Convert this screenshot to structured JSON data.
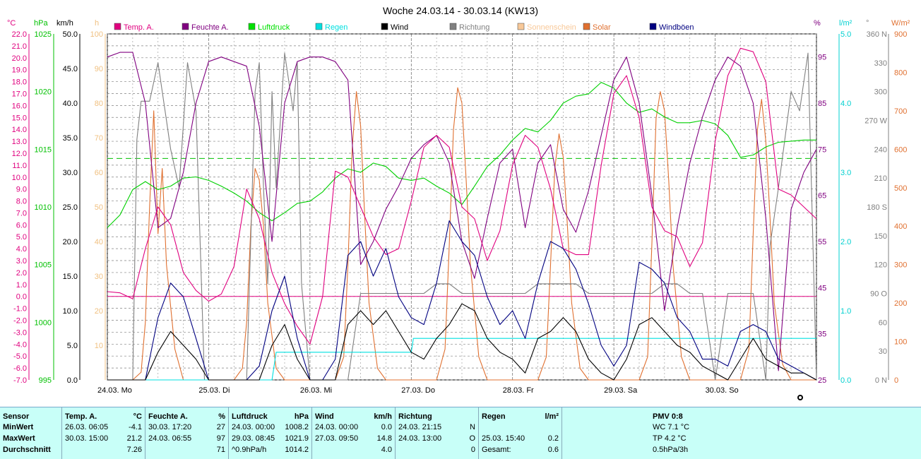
{
  "chart_data": {
    "type": "line",
    "title": "Woche 24.03.14 - 30.03.14 (KW13)",
    "x_days": [
      "24.03.  Mo",
      "25.03.  Di",
      "26.03.  Mi",
      "27.03.  Do",
      "28.03.  Fr",
      "29.03.  Sa",
      "30.03.  So"
    ],
    "x_range_hours": [
      0,
      168
    ],
    "axes": {
      "temp": {
        "unit": "°C",
        "min": -7,
        "max": 22,
        "step": 1,
        "color": "#e0007f"
      },
      "pressure": {
        "unit": "hPa",
        "min": 995,
        "max": 1025,
        "step": 5,
        "color": "#00c000"
      },
      "wind": {
        "unit": "km/h",
        "min": 0,
        "max": 50,
        "step": 5,
        "color": "#000000"
      },
      "sunshine": {
        "unit": "h",
        "min": 0,
        "max": 100,
        "step": 10,
        "color": "#f0c080"
      },
      "humidity": {
        "unit": "%",
        "ticks": [
          25,
          35,
          45,
          55,
          65,
          75,
          85,
          95
        ],
        "color": "#800080"
      },
      "rain": {
        "unit": "l/m²",
        "min": 0,
        "max": 5,
        "step": 1,
        "color": "#00d0d0"
      },
      "direction": {
        "unit": "°",
        "ticks": [
          "0 N",
          "30",
          "60",
          "90 O",
          "120",
          "150",
          "180 S",
          "210",
          "240",
          "270 W",
          "300",
          "330",
          "360 N"
        ],
        "color": "#808080"
      },
      "solar": {
        "unit": "W/m²",
        "min": 0,
        "max": 900,
        "step": 100,
        "color": "#e07030"
      }
    },
    "legend": [
      {
        "name": "Temp. A.",
        "color": "#e0007f"
      },
      {
        "name": "Feuchte A.",
        "color": "#800080"
      },
      {
        "name": "Luftdruck",
        "color": "#00e000"
      },
      {
        "name": "Regen",
        "color": "#00e0e0"
      },
      {
        "name": "Wind",
        "color": "#000000"
      },
      {
        "name": "Richtung",
        "color": "#808080"
      },
      {
        "name": "Sonnenschein",
        "color": "#f8c898"
      },
      {
        "name": "Solar",
        "color": "#e07030"
      },
      {
        "name": "Windböen",
        "color": "#000080"
      }
    ],
    "series": [
      {
        "name": "Temp. A.",
        "axis": "temp",
        "color": "#e0007f",
        "x": [
          0,
          3,
          6,
          9,
          12,
          15,
          18,
          21,
          24,
          27,
          30,
          33,
          36,
          39,
          42,
          45,
          48,
          51,
          54,
          57,
          60,
          63,
          66,
          69,
          72,
          75,
          78,
          81,
          84,
          87,
          90,
          93,
          96,
          99,
          102,
          105,
          108,
          111,
          114,
          117,
          120,
          123,
          126,
          129,
          132,
          135,
          138,
          141,
          144,
          147,
          150,
          153,
          156,
          159,
          162,
          165,
          168
        ],
        "y": [
          0.4,
          0.3,
          -0.2,
          4,
          7.5,
          6,
          2,
          0.5,
          -0.4,
          0.2,
          2.5,
          9,
          6.5,
          2,
          -0.6,
          -2.5,
          -4,
          0,
          10.5,
          10,
          7.5,
          5,
          3.5,
          4,
          8,
          12.5,
          13.5,
          12.5,
          7.5,
          6.5,
          3,
          5.5,
          11,
          13.5,
          12.5,
          9,
          4,
          3.5,
          3.5,
          11,
          17,
          18.5,
          15,
          7.5,
          5.5,
          5,
          2.5,
          4.5,
          13,
          18.5,
          20.8,
          20.5,
          18,
          9,
          8.5,
          7.5,
          6.5
        ]
      },
      {
        "name": "Feuchte A.",
        "axis": "humidity",
        "color": "#800080",
        "x": [
          0,
          3,
          6,
          9,
          12,
          15,
          18,
          21,
          24,
          27,
          30,
          33,
          36,
          39,
          42,
          45,
          48,
          51,
          54,
          57,
          60,
          63,
          66,
          69,
          72,
          75,
          78,
          81,
          84,
          87,
          90,
          93,
          96,
          99,
          102,
          105,
          108,
          111,
          114,
          117,
          120,
          123,
          126,
          129,
          132,
          135,
          138,
          141,
          144,
          147,
          150,
          153,
          156,
          159,
          162,
          165,
          168
        ],
        "y": [
          95,
          96,
          96,
          85,
          58,
          60,
          70,
          85,
          94,
          95,
          94,
          93,
          80,
          55,
          85,
          94,
          95,
          95,
          94,
          90,
          50,
          55,
          62,
          67,
          73,
          76,
          78,
          72,
          55,
          47,
          60,
          72,
          75,
          58,
          72,
          76,
          62,
          57,
          66,
          78,
          90,
          95,
          85,
          65,
          40,
          58,
          72,
          82,
          90,
          95,
          93,
          85,
          60,
          27,
          62,
          70,
          75
        ]
      },
      {
        "name": "Luftdruck",
        "axis": "pressure",
        "color": "#00d000",
        "x": [
          0,
          3,
          6,
          9,
          12,
          15,
          18,
          21,
          24,
          27,
          30,
          33,
          36,
          39,
          42,
          45,
          48,
          51,
          54,
          57,
          60,
          63,
          66,
          69,
          72,
          75,
          78,
          81,
          84,
          87,
          90,
          93,
          96,
          99,
          102,
          105,
          108,
          111,
          114,
          117,
          120,
          123,
          126,
          129,
          132,
          135,
          138,
          141,
          144,
          147,
          150,
          153,
          156,
          159,
          162,
          165,
          168
        ],
        "y": [
          1008.2,
          1009.3,
          1011.5,
          1012.2,
          1011.5,
          1011.8,
          1012.5,
          1012.6,
          1012.3,
          1011.8,
          1011.2,
          1010.5,
          1009.5,
          1008.8,
          1009.5,
          1010.3,
          1010.5,
          1011.3,
          1012.5,
          1013.3,
          1013.0,
          1013.8,
          1013.5,
          1012.5,
          1012.3,
          1012.5,
          1011.8,
          1011.2,
          1010.2,
          1011.8,
          1013.5,
          1014.5,
          1015.8,
          1016.8,
          1016.5,
          1017.5,
          1019.0,
          1019.6,
          1019.8,
          1020.8,
          1020.3,
          1019.0,
          1018.2,
          1018.5,
          1017.8,
          1017.3,
          1017.3,
          1017.5,
          1017.2,
          1016.2,
          1014.3,
          1014.5,
          1015.2,
          1015.6,
          1015.7,
          1015.8,
          1015.8
        ]
      },
      {
        "name": "Wind",
        "axis": "wind",
        "color": "#000000",
        "x": [
          0,
          3,
          6,
          9,
          12,
          15,
          18,
          21,
          24,
          27,
          30,
          33,
          36,
          39,
          42,
          45,
          48,
          51,
          54,
          57,
          60,
          63,
          66,
          69,
          72,
          75,
          78,
          81,
          84,
          87,
          90,
          93,
          96,
          99,
          102,
          105,
          108,
          111,
          114,
          117,
          120,
          123,
          126,
          129,
          132,
          135,
          138,
          141,
          144,
          147,
          150,
          153,
          156,
          159,
          162,
          165,
          168
        ],
        "y": [
          0,
          0,
          0,
          0,
          4,
          7,
          5,
          3,
          0,
          0,
          0,
          0,
          0,
          5,
          8,
          3,
          0,
          0,
          0,
          8,
          10,
          8,
          10,
          7,
          4,
          3,
          6,
          8,
          11,
          10,
          6,
          4,
          3,
          1,
          6,
          7,
          9,
          7,
          3,
          1,
          0,
          3,
          8,
          9,
          7,
          5,
          4,
          2,
          1,
          0,
          3,
          6,
          3,
          2,
          1,
          1,
          0
        ]
      },
      {
        "name": "Windböen",
        "axis": "wind",
        "color": "#000080",
        "x": [
          0,
          3,
          6,
          9,
          12,
          15,
          18,
          21,
          24,
          27,
          30,
          33,
          36,
          39,
          42,
          45,
          48,
          51,
          54,
          57,
          60,
          63,
          66,
          69,
          72,
          75,
          78,
          81,
          84,
          87,
          90,
          93,
          96,
          99,
          102,
          105,
          108,
          111,
          114,
          117,
          120,
          123,
          126,
          129,
          132,
          135,
          138,
          141,
          144,
          147,
          150,
          153,
          156,
          159,
          162,
          165,
          168
        ],
        "y": [
          0,
          0,
          0,
          0,
          9,
          14,
          12,
          6,
          0,
          0,
          0,
          0,
          2,
          10,
          15,
          6,
          0,
          0,
          3,
          18,
          20,
          15,
          19,
          12,
          9,
          8,
          14,
          23,
          20,
          18,
          12,
          8,
          10,
          6,
          14,
          20,
          19,
          16,
          11,
          5,
          2,
          5,
          17,
          16,
          14,
          9,
          7,
          3,
          3,
          2,
          7,
          8,
          7,
          3,
          2,
          1,
          0
        ]
      },
      {
        "name": "Richtung",
        "axis": "direction",
        "color": "#808080",
        "x": [
          0,
          3,
          6,
          7,
          8,
          10,
          12,
          14,
          15,
          17,
          19,
          21,
          23,
          24,
          27,
          30,
          33,
          35,
          36,
          37,
          38,
          39,
          40,
          42,
          44,
          45,
          46,
          48,
          51,
          54,
          57,
          60,
          63,
          66,
          69,
          72,
          75,
          78,
          81,
          84,
          87,
          90,
          93,
          96,
          99,
          102,
          105,
          108,
          111,
          114,
          117,
          120,
          123,
          126,
          129,
          132,
          135,
          138,
          141,
          144,
          147,
          150,
          153,
          156,
          157,
          159,
          162,
          164,
          166,
          168
        ],
        "y": [
          0,
          0,
          0,
          250,
          290,
          290,
          330,
          270,
          240,
          200,
          330,
          280,
          0,
          0,
          0,
          0,
          0,
          300,
          330,
          200,
          100,
          300,
          200,
          340,
          280,
          330,
          100,
          0,
          0,
          0,
          0,
          90,
          90,
          90,
          90,
          90,
          90,
          100,
          100,
          90,
          90,
          90,
          90,
          90,
          90,
          100,
          100,
          100,
          100,
          90,
          90,
          90,
          90,
          90,
          90,
          100,
          100,
          90,
          90,
          0,
          90,
          90,
          90,
          0,
          140,
          200,
          300,
          280,
          340,
          0
        ]
      },
      {
        "name": "Solar",
        "axis": "solar",
        "color": "#e07030",
        "x": [
          0,
          3,
          6,
          8,
          9,
          10,
          11,
          12,
          13,
          14,
          16,
          18,
          24,
          30,
          32,
          33,
          34,
          35,
          36,
          37,
          38,
          40,
          42,
          48,
          54,
          56,
          57,
          58,
          59,
          60,
          61,
          62,
          64,
          66,
          72,
          78,
          80,
          81,
          82,
          83,
          84,
          85,
          86,
          88,
          90,
          96,
          102,
          104,
          105,
          106,
          107,
          108,
          109,
          110,
          112,
          114,
          120,
          126,
          128,
          129,
          130,
          131,
          132,
          133,
          134,
          136,
          138,
          144,
          150,
          152,
          153,
          154,
          155,
          156,
          157,
          158,
          160,
          162,
          168
        ],
        "y": [
          0,
          0,
          0,
          20,
          150,
          450,
          700,
          380,
          550,
          300,
          80,
          0,
          0,
          0,
          30,
          150,
          400,
          550,
          520,
          400,
          200,
          30,
          0,
          0,
          0,
          60,
          300,
          600,
          750,
          660,
          420,
          200,
          30,
          0,
          0,
          0,
          80,
          350,
          650,
          760,
          720,
          520,
          300,
          60,
          0,
          0,
          0,
          60,
          300,
          550,
          640,
          580,
          400,
          200,
          30,
          0,
          0,
          0,
          60,
          350,
          680,
          750,
          700,
          520,
          300,
          60,
          0,
          0,
          0,
          80,
          380,
          650,
          730,
          620,
          420,
          200,
          40,
          0,
          0
        ]
      },
      {
        "name": "Regen",
        "axis": "rain",
        "color": "#00e0e0",
        "x": [
          0,
          39,
          40,
          72,
          72.5,
          168
        ],
        "y": [
          0,
          0,
          0.4,
          0.4,
          0.6,
          0.6
        ]
      }
    ],
    "reference_lines": [
      {
        "axis": "pressure",
        "value": 1014.2,
        "style": "dashed",
        "color": "#00c000"
      },
      {
        "axis": "temp",
        "value": 0,
        "style": "solid",
        "color": "#e0007f"
      }
    ],
    "grid": true
  },
  "stats": {
    "sensor": {
      "header": "Sensor",
      "rows": [
        "MinWert",
        "MaxWert",
        "Durchschnitt"
      ]
    },
    "temp": {
      "header": "Temp. A.",
      "unit": "°C",
      "min_time": "26.03.  06:05",
      "min_val": "-4.1",
      "max_time": "30.03.  15:00",
      "max_val": "21.2",
      "avg_val": "7.26"
    },
    "humidity": {
      "header": "Feuchte A.",
      "unit": "%",
      "min_time": "30.03.  17:20",
      "min_val": "27",
      "max_time": "24.03.  06:55",
      "max_val": "97",
      "avg_val": "71"
    },
    "pressure": {
      "header": "Luftdruck",
      "unit": "hPa",
      "min_time": "24.03.  00:00",
      "min_val": "1008.2",
      "max_time": "29.03.  08:45",
      "max_val": "1021.9",
      "avg_label": "^0.9hPa/h",
      "avg_val": "1014.2"
    },
    "wind": {
      "header": "Wind",
      "unit": "km/h",
      "min_time": "24.03.  00:00",
      "min_val": "0.0",
      "max_time": "27.03.  09:50",
      "max_val": "14.8",
      "avg_val": "4.0"
    },
    "direction": {
      "header": "Richtung",
      "min_time": "24.03.  21:15",
      "min_val": "N",
      "max_time": "24.03.  13:00",
      "max_val": "O",
      "avg_val": "0"
    },
    "rain": {
      "header": "Regen",
      "unit": "l/m²",
      "max_time": "25.03.  15:40",
      "max_val": "0.2",
      "total_label": "Gesamt:",
      "total_val": "0.6"
    },
    "pmv": {
      "header": "PMV 0:8",
      "line1": "WC 7.1 °C",
      "line2": "TP 4.2 °C",
      "line3": "0.5hPa/3h"
    }
  }
}
